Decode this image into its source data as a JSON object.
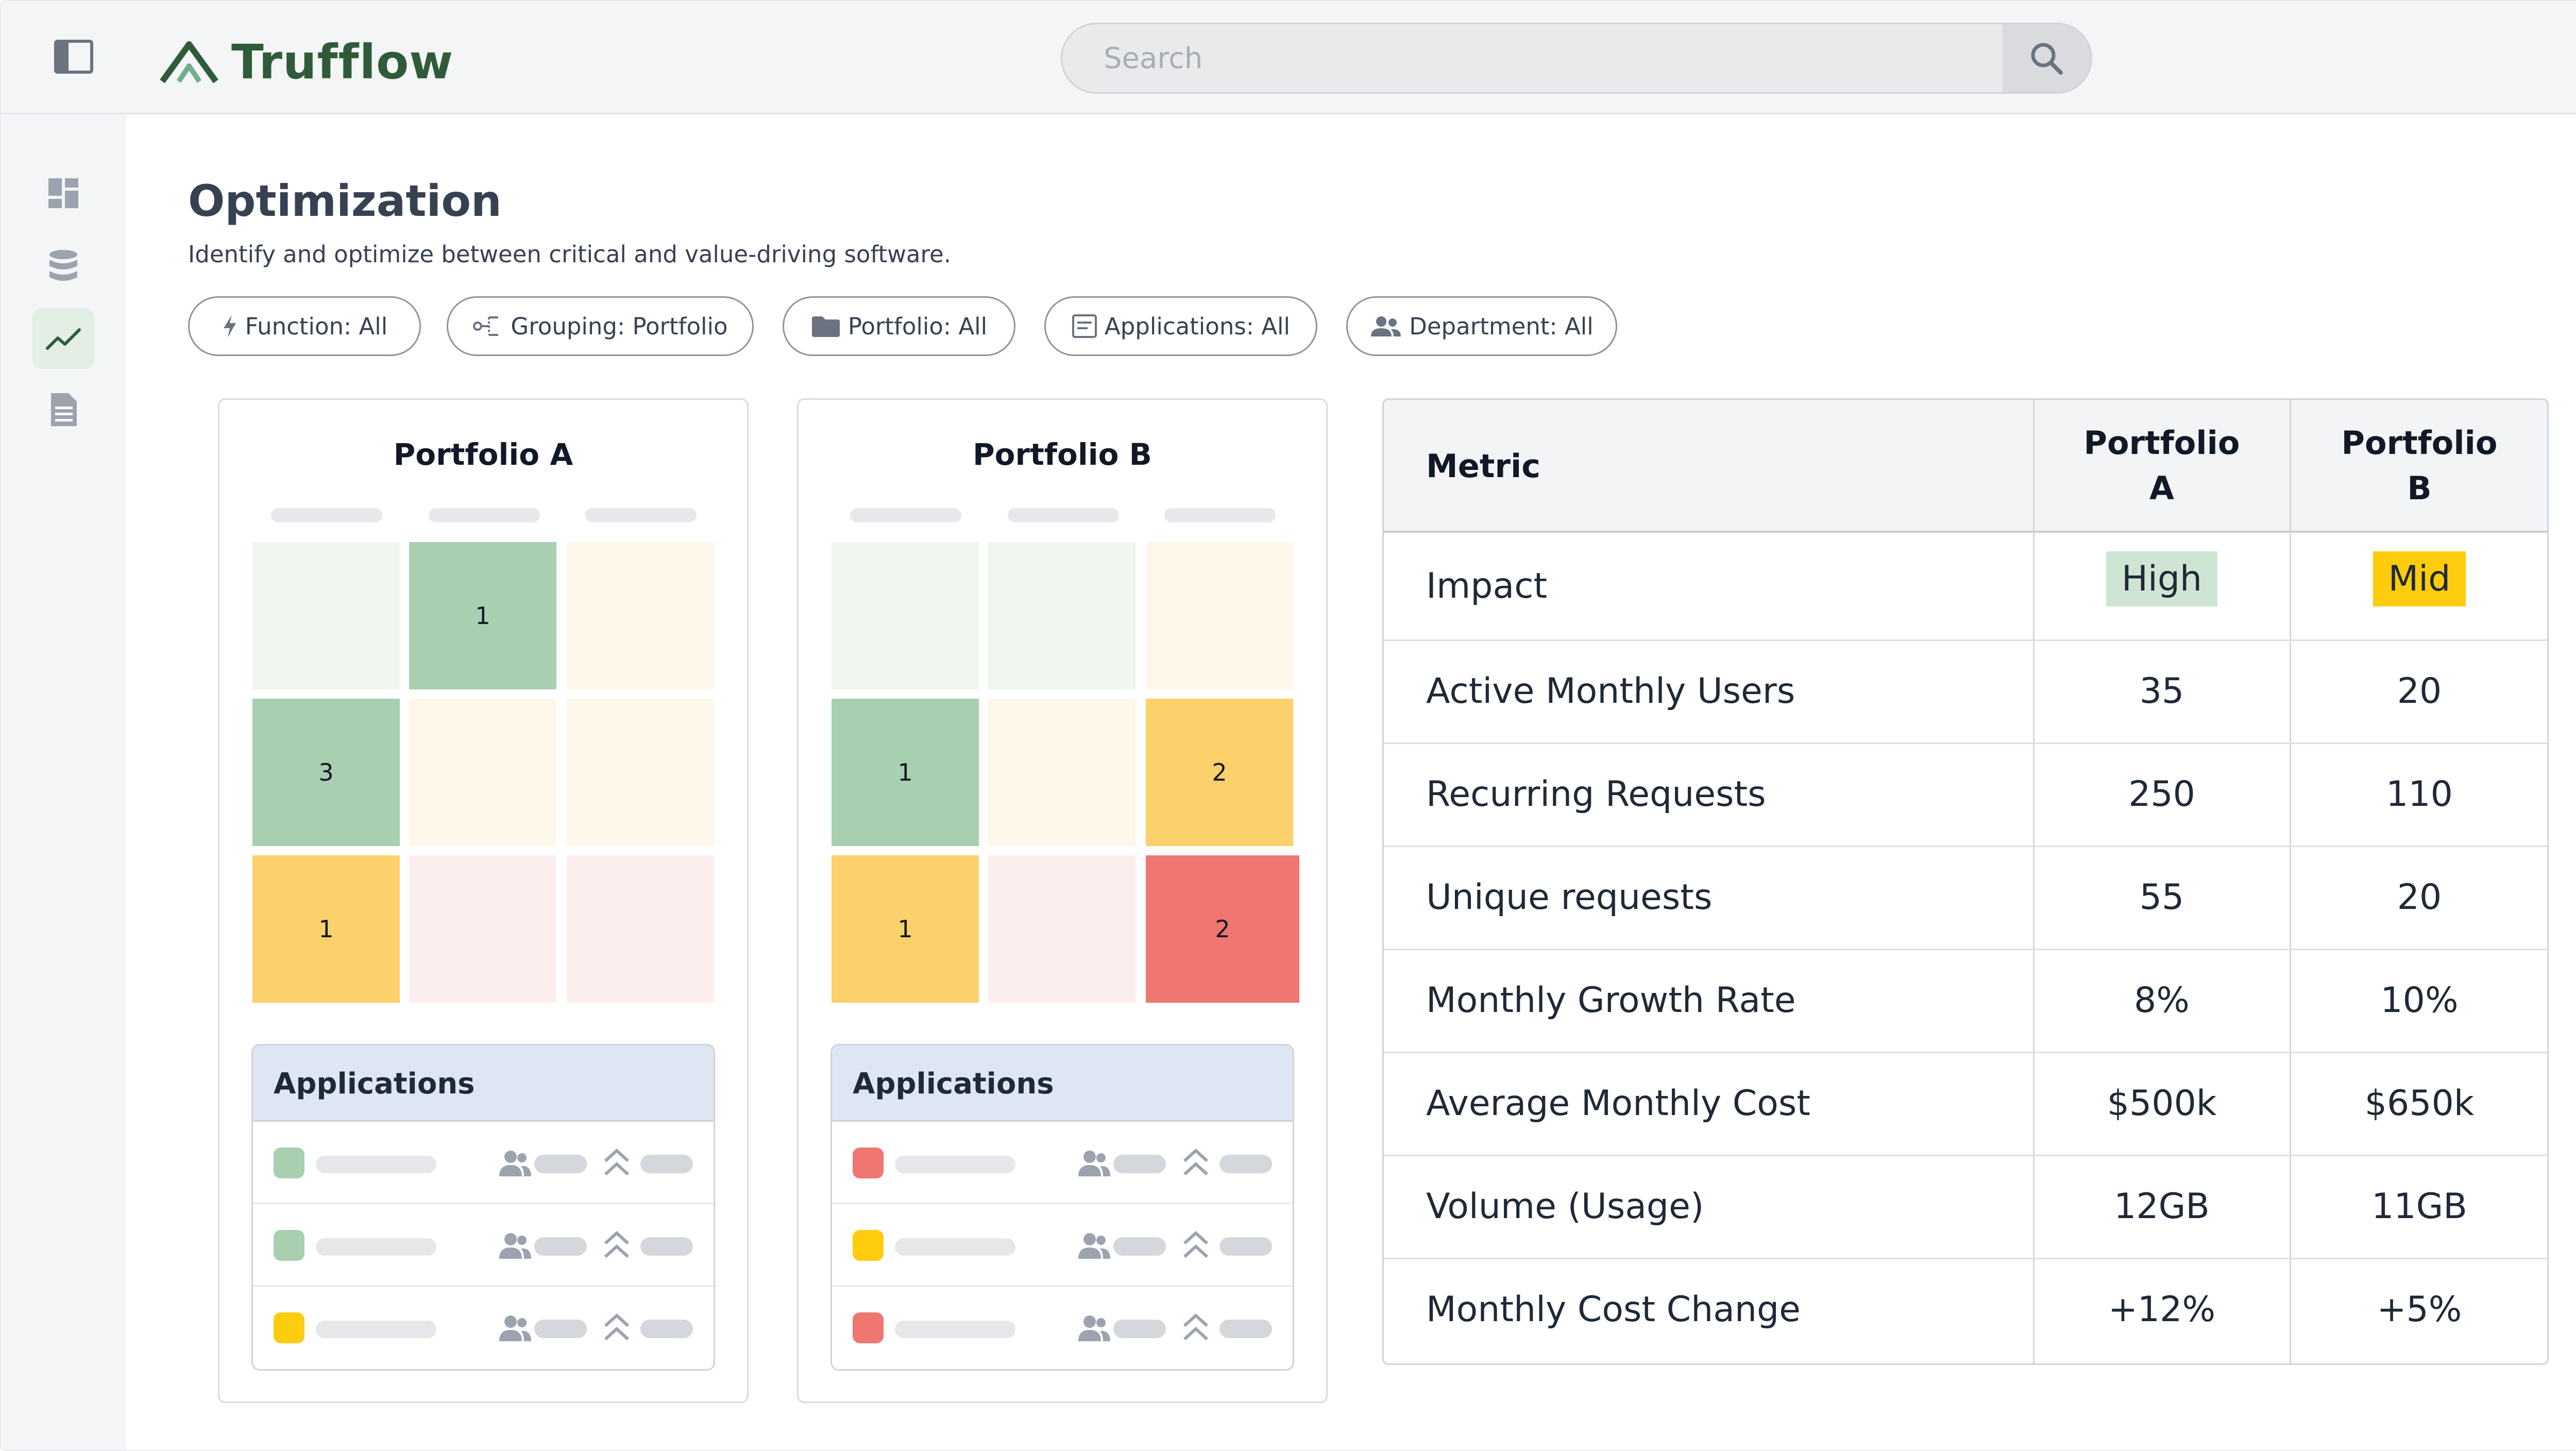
{
  "app": {
    "name": "Trufflow"
  },
  "search": {
    "placeholder": "Search"
  },
  "page": {
    "title": "Optimization",
    "subtitle": "Identify and optimize between critical and value-driving software."
  },
  "filters": [
    {
      "label": "Function: All",
      "icon": "bolt-icon"
    },
    {
      "label": "Grouping: Portfolio",
      "icon": "grouping-icon"
    },
    {
      "label": "Portfolio: All",
      "icon": "folder-icon"
    },
    {
      "label": "Applications: All",
      "icon": "app-window-icon"
    },
    {
      "label": "Department: All",
      "icon": "users-icon"
    }
  ],
  "nav": [
    {
      "icon": "dashboard-icon",
      "active": false
    },
    {
      "icon": "database-icon",
      "active": false
    },
    {
      "icon": "trend-line-icon",
      "active": true
    },
    {
      "icon": "document-icon",
      "active": false
    }
  ],
  "colors": {
    "brand": "#2f5b3a",
    "green": "#a8cfb0",
    "green_light": "#eef6ee",
    "yellow": "#fcd06a",
    "yellow_light": "#fdf7ea",
    "red": "#f07672",
    "red_light": "#fdeeee",
    "badge_high": "#cfe5d3",
    "badge_mid": "#fdcc0d"
  },
  "portfolios": [
    {
      "title": "Portfolio A",
      "matrix": [
        [
          {
            "tone": "green_light",
            "value": ""
          },
          {
            "tone": "green",
            "value": "1"
          },
          {
            "tone": "yellow_light",
            "value": ""
          }
        ],
        [
          {
            "tone": "green",
            "value": "3"
          },
          {
            "tone": "yellow_light",
            "value": ""
          },
          {
            "tone": "yellow_light",
            "value": ""
          }
        ],
        [
          {
            "tone": "yellow",
            "value": "1"
          },
          {
            "tone": "red_light",
            "value": ""
          },
          {
            "tone": "red_light",
            "value": ""
          }
        ]
      ],
      "applications_title": "Applications",
      "applications": [
        {
          "tone": "green"
        },
        {
          "tone": "green"
        },
        {
          "tone": "badge_mid"
        }
      ]
    },
    {
      "title": "Portfolio B",
      "matrix": [
        [
          {
            "tone": "green_light",
            "value": ""
          },
          {
            "tone": "green_light",
            "value": ""
          },
          {
            "tone": "yellow_light",
            "value": ""
          }
        ],
        [
          {
            "tone": "green",
            "value": "1"
          },
          {
            "tone": "yellow_light",
            "value": ""
          },
          {
            "tone": "yellow",
            "value": "2"
          }
        ],
        [
          {
            "tone": "yellow",
            "value": "1"
          },
          {
            "tone": "red_light",
            "value": ""
          },
          {
            "tone": "red",
            "value": "2"
          }
        ]
      ],
      "applications_title": "Applications",
      "applications": [
        {
          "tone": "red"
        },
        {
          "tone": "badge_mid"
        },
        {
          "tone": "red"
        }
      ]
    }
  ],
  "metrics": {
    "header": {
      "metric": "Metric",
      "col_a_line1": "Portfolio",
      "col_a_line2": "A",
      "col_b_line1": "Portfolio",
      "col_b_line2": "B"
    },
    "rows": [
      {
        "label": "Impact",
        "a": "High",
        "b": "Mid"
      },
      {
        "label": "Active Monthly Users",
        "a": "35",
        "b": "20"
      },
      {
        "label": "Recurring Requests",
        "a": "250",
        "b": "110"
      },
      {
        "label": "Unique requests",
        "a": "55",
        "b": "20"
      },
      {
        "label": "Monthly Growth Rate",
        "a": "8%",
        "b": "10%"
      },
      {
        "label": "Average Monthly Cost",
        "a": "$500k",
        "b": "$650k"
      },
      {
        "label": "Volume (Usage)",
        "a": "12GB",
        "b": "11GB"
      },
      {
        "label": "Monthly Cost Change",
        "a": "+12%",
        "b": "+5%"
      }
    ]
  }
}
